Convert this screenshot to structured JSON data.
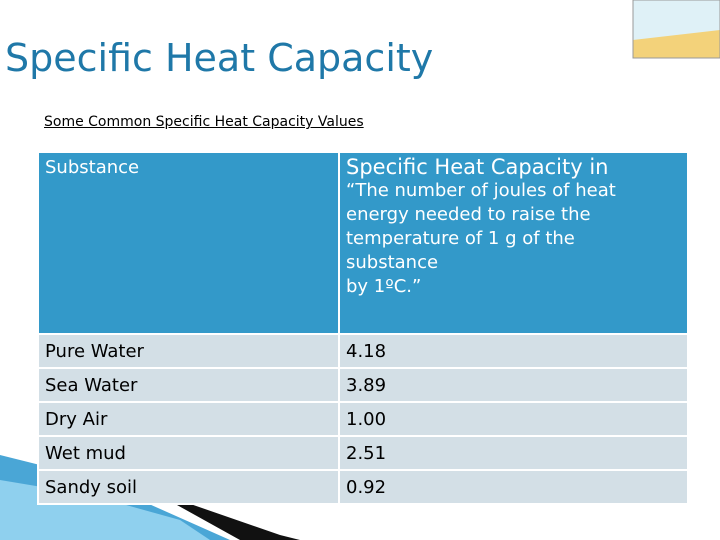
{
  "title": "Specific Heat Capacity",
  "subtitle": "Some Common Specific Heat Capacity Values",
  "table": {
    "header": [
      "Substance",
      {
        "title": "Specific Heat Capacity in",
        "lines": [
          "“The number of joules of heat",
          "energy needed to raise the",
          "temperature of 1 g of the",
          "substance",
          "by 1ºC.”"
        ]
      }
    ],
    "rows": [
      [
        "Pure Water",
        "4.18"
      ],
      [
        "Sea Water",
        "3.89"
      ],
      [
        "Dry Air",
        "1.00"
      ],
      [
        "Wet mud",
        "2.51"
      ],
      [
        "Sandy soil",
        "0.92"
      ]
    ]
  }
}
